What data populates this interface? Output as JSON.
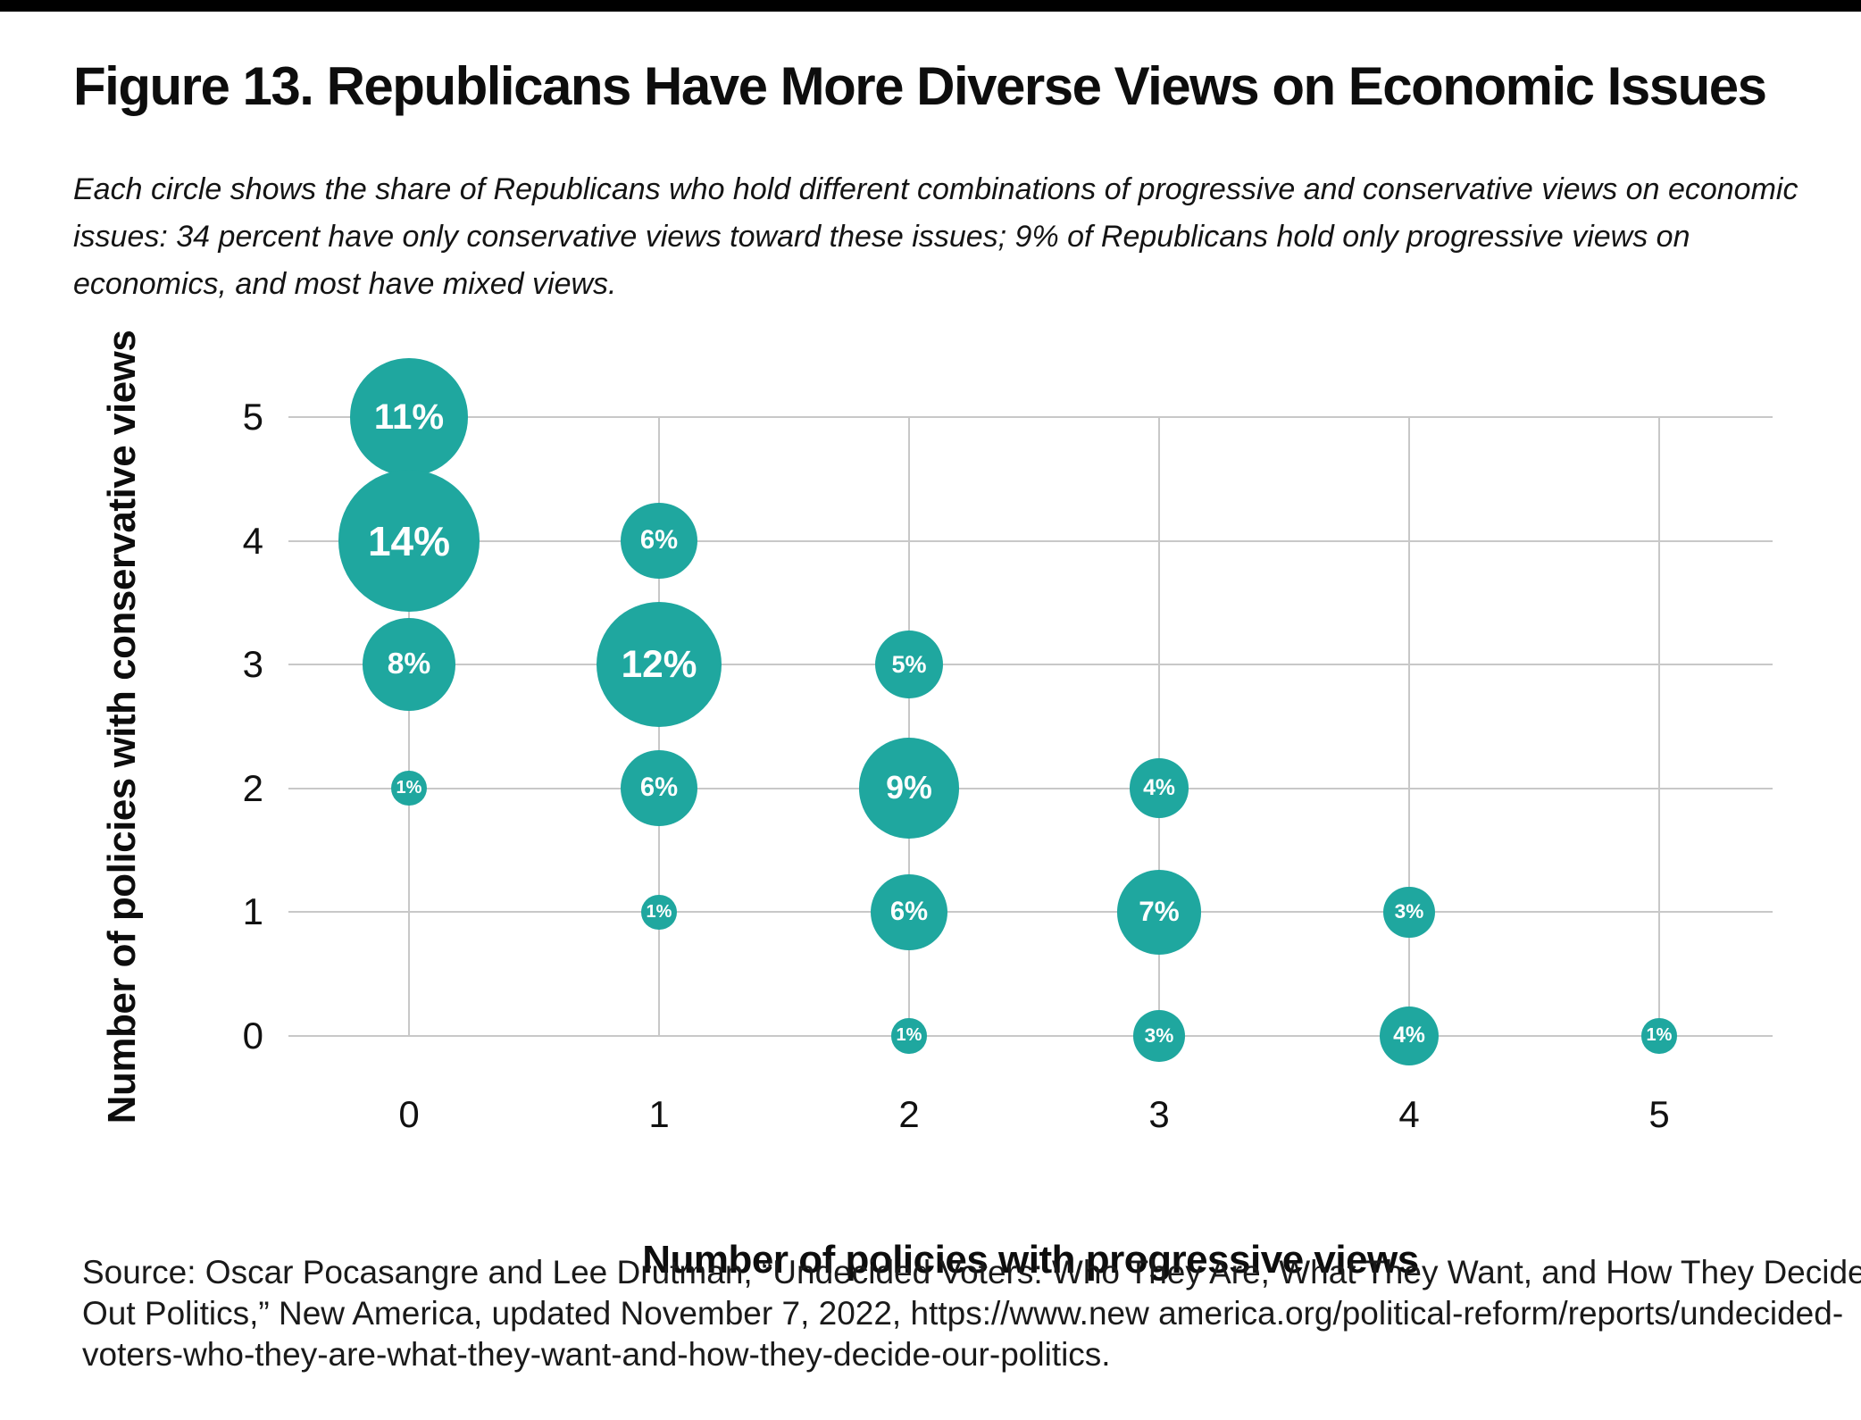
{
  "top_bar_color": "#000000",
  "title": "Figure 13. Republicans Have More Diverse Views on Economic Issues",
  "subtitle_lines": [
    "Each circle shows the share of Republicans who hold different combinations of progressive and conservative views on economic",
    "issues: 34 percent have only conservative views toward these issues; 9% of Republicans hold only progressive views on",
    "economics, and most have mixed views."
  ],
  "source_lines": [
    "Source: Oscar Pocasangre and Lee Drutman, “Undecided Voters: Who They Are, What They Want, and How They Decide",
    "Out Politics,” New America, updated November 7, 2022, https://www.new america.org/political-reform/reports/undecided-",
    "voters-who-they-are-what-they-want-and-how-they-decide-our-politics."
  ],
  "chart_data": {
    "type": "scatter",
    "subtype": "bubble",
    "xlabel": "Number of policies with progressive views",
    "ylabel": "Number of policies with conservative views",
    "x_ticks": [
      "0",
      "1",
      "2",
      "3",
      "4",
      "5"
    ],
    "y_ticks": [
      "0",
      "1",
      "2",
      "3",
      "4",
      "5"
    ],
    "xlim": [
      -0.5,
      5.5
    ],
    "ylim": [
      -0.5,
      5.5
    ],
    "grid": true,
    "legend": false,
    "bubble_color": "#1fa79f",
    "gridline_color": "#c8c8c8",
    "points": [
      {
        "x": 0,
        "y": 5,
        "value": 11,
        "label": "11%"
      },
      {
        "x": 0,
        "y": 4,
        "value": 14,
        "label": "14%"
      },
      {
        "x": 0,
        "y": 3,
        "value": 8,
        "label": "8%"
      },
      {
        "x": 0,
        "y": 2,
        "value": 1,
        "label": "1%"
      },
      {
        "x": 1,
        "y": 4,
        "value": 6,
        "label": "6%"
      },
      {
        "x": 1,
        "y": 3,
        "value": 12,
        "label": "12%"
      },
      {
        "x": 1,
        "y": 2,
        "value": 6,
        "label": "6%"
      },
      {
        "x": 1,
        "y": 1,
        "value": 1,
        "label": "1%"
      },
      {
        "x": 2,
        "y": 3,
        "value": 5,
        "label": "5%"
      },
      {
        "x": 2,
        "y": 2,
        "value": 9,
        "label": "9%"
      },
      {
        "x": 2,
        "y": 1,
        "value": 6,
        "label": "6%"
      },
      {
        "x": 2,
        "y": 0,
        "value": 1,
        "label": "1%"
      },
      {
        "x": 3,
        "y": 2,
        "value": 4,
        "label": "4%"
      },
      {
        "x": 3,
        "y": 1,
        "value": 7,
        "label": "7%"
      },
      {
        "x": 3,
        "y": 0,
        "value": 3,
        "label": "3%"
      },
      {
        "x": 4,
        "y": 1,
        "value": 3,
        "label": "3%"
      },
      {
        "x": 4,
        "y": 0,
        "value": 4,
        "label": "4%"
      },
      {
        "x": 5,
        "y": 0,
        "value": 1,
        "label": "1%"
      }
    ]
  }
}
